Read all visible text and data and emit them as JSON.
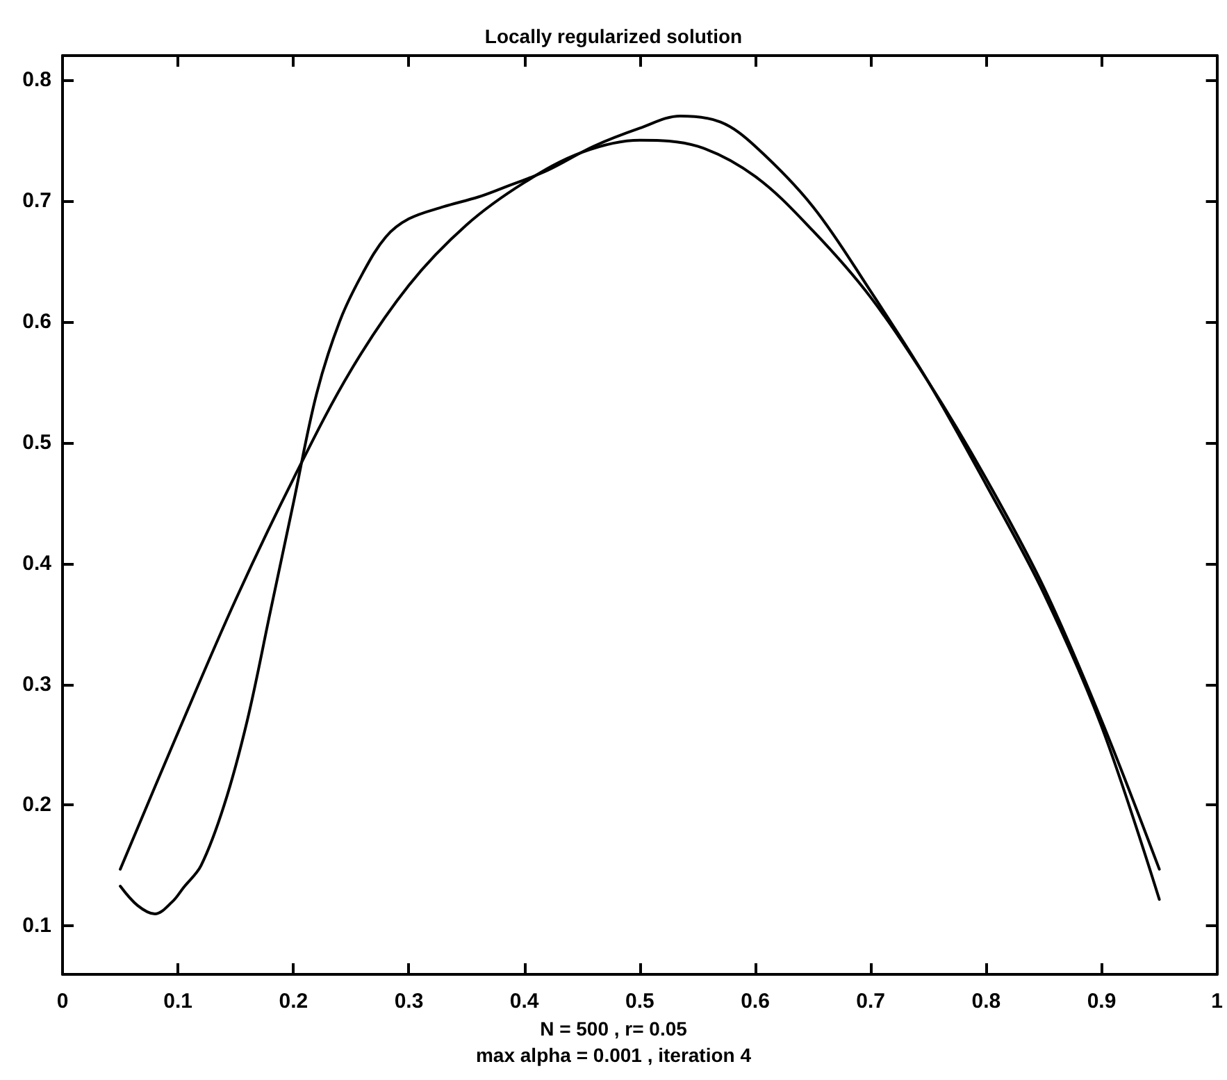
{
  "chart_data": {
    "type": "line",
    "title": "Locally regularized solution",
    "xlabel": "N = 500 , r= 0.05",
    "annotations": [
      "max alpha = 0.001 , iteration 4"
    ],
    "xlim": [
      0,
      1
    ],
    "xticks": [
      0,
      0.1,
      0.2,
      0.3,
      0.4,
      0.5,
      0.6,
      0.7,
      0.8,
      0.9,
      1
    ],
    "ylim": [
      0.06,
      0.82
    ],
    "yticks": [
      0.1,
      0.2,
      0.3,
      0.4,
      0.5,
      0.6,
      0.7,
      0.8
    ],
    "grid": false,
    "marker": "none",
    "line_style": "solid",
    "series": [
      {
        "color": "#000000",
        "x": [
          0.05,
          0.1,
          0.15,
          0.2,
          0.25,
          0.3,
          0.35,
          0.4,
          0.45,
          0.5,
          0.55,
          0.6,
          0.65,
          0.7,
          0.75,
          0.8,
          0.85,
          0.9,
          0.95
        ],
        "values": [
          0.147,
          0.26,
          0.37,
          0.47,
          0.56,
          0.63,
          0.68,
          0.715,
          0.74,
          0.75,
          0.745,
          0.72,
          0.675,
          0.62,
          0.55,
          0.47,
          0.38,
          0.27,
          0.147
        ]
      },
      {
        "color": "#000000",
        "x": [
          0.05,
          0.065,
          0.08,
          0.095,
          0.105,
          0.12,
          0.14,
          0.16,
          0.18,
          0.2,
          0.22,
          0.24,
          0.26,
          0.28,
          0.3,
          0.33,
          0.36,
          0.38,
          0.42,
          0.46,
          0.5,
          0.535,
          0.57,
          0.6,
          0.65,
          0.7,
          0.75,
          0.8,
          0.85,
          0.9,
          0.95
        ],
        "values": [
          0.133,
          0.117,
          0.11,
          0.12,
          0.132,
          0.15,
          0.2,
          0.27,
          0.36,
          0.45,
          0.54,
          0.6,
          0.64,
          0.67,
          0.685,
          0.695,
          0.703,
          0.71,
          0.725,
          0.745,
          0.76,
          0.77,
          0.765,
          0.745,
          0.695,
          0.625,
          0.55,
          0.465,
          0.375,
          0.265,
          0.122
        ]
      }
    ]
  }
}
